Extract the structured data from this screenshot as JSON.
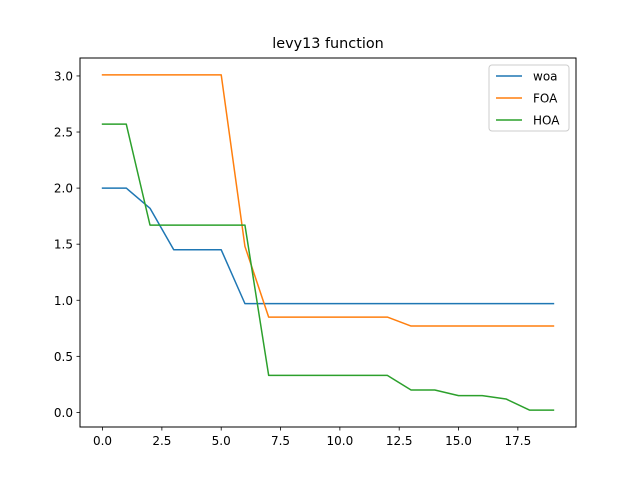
{
  "chart_data": {
    "type": "line",
    "title": "levy13 function",
    "xlabel": "",
    "ylabel": "",
    "xlim": [
      -0.95,
      19.95
    ],
    "ylim": [
      -0.13,
      3.16
    ],
    "xticks": [
      0,
      2.5,
      5,
      7.5,
      10,
      12.5,
      15,
      17.5
    ],
    "xtick_labels": [
      "0.0",
      "2.5",
      "5.0",
      "7.5",
      "10.0",
      "12.5",
      "15.0",
      "17.5"
    ],
    "yticks": [
      0,
      0.5,
      1,
      1.5,
      2,
      2.5,
      3
    ],
    "ytick_labels": [
      "0.0",
      "0.5",
      "1.0",
      "1.5",
      "2.0",
      "2.5",
      "3.0"
    ],
    "grid": false,
    "legend_position": "upper right",
    "x": [
      0,
      1,
      2,
      3,
      4,
      5,
      6,
      7,
      8,
      9,
      10,
      11,
      12,
      13,
      14,
      15,
      16,
      17,
      18,
      19
    ],
    "series": [
      {
        "name": "woa",
        "color": "#1f77b4",
        "values": [
          2.0,
          2.0,
          1.82,
          1.45,
          1.45,
          1.45,
          0.97,
          0.97,
          0.97,
          0.97,
          0.97,
          0.97,
          0.97,
          0.97,
          0.97,
          0.97,
          0.97,
          0.97,
          0.97,
          0.97
        ]
      },
      {
        "name": "FOA",
        "color": "#ff7f0e",
        "values": [
          3.01,
          3.01,
          3.01,
          3.01,
          3.01,
          3.01,
          1.48,
          0.85,
          0.85,
          0.85,
          0.85,
          0.85,
          0.85,
          0.77,
          0.77,
          0.77,
          0.77,
          0.77,
          0.77,
          0.77
        ]
      },
      {
        "name": "HOA",
        "color": "#2ca02c",
        "values": [
          2.57,
          2.57,
          1.67,
          1.67,
          1.67,
          1.67,
          1.67,
          0.33,
          0.33,
          0.33,
          0.33,
          0.33,
          0.33,
          0.2,
          0.2,
          0.15,
          0.15,
          0.12,
          0.02,
          0.02
        ]
      }
    ]
  }
}
